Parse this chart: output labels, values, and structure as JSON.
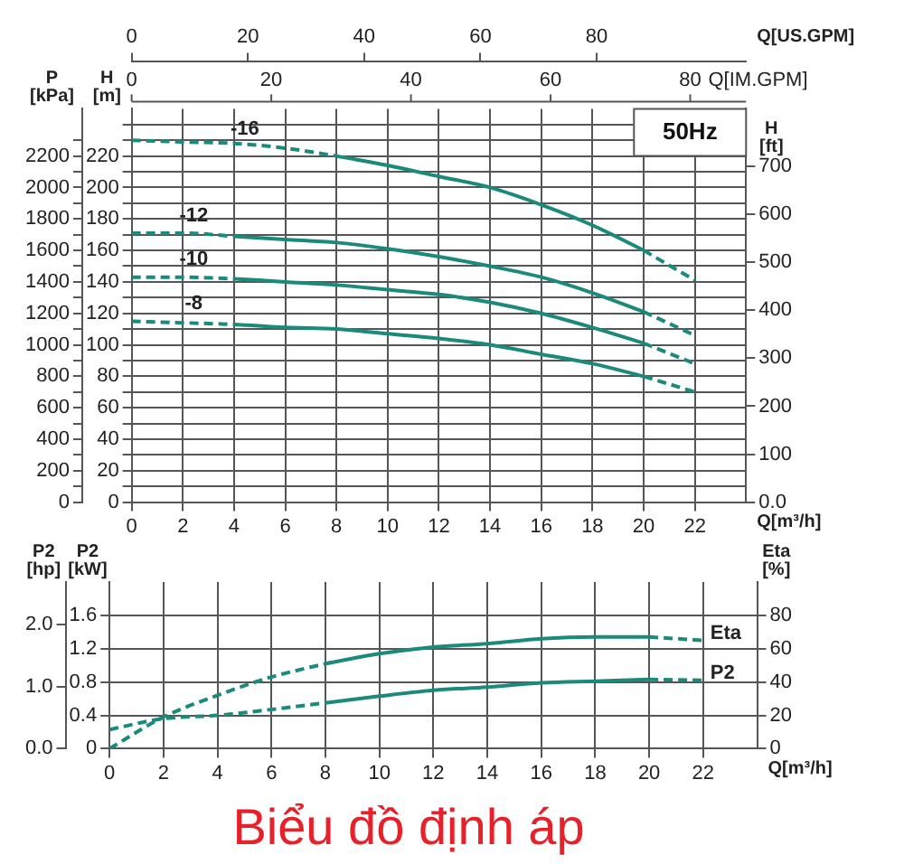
{
  "chart_data": [
    {
      "type": "line",
      "xlabel": "Q[m³/h]",
      "x2label": "Q[US.GPM]",
      "ylabel": "H [m]",
      "y2label": "P [kPa]",
      "y3label": "H [ft]",
      "annotations": [
        "50Hz",
        "0",
        "20",
        "40",
        "60",
        "80",
        "Q[IM.GPM]"
      ],
      "grid": true,
      "line_style": "solid",
      "xlim": [
        0,
        24
      ],
      "xticks": [
        0,
        2,
        4,
        6,
        8,
        10,
        12,
        14,
        16,
        18,
        20,
        22
      ],
      "x2lim": [
        0,
        105.7
      ],
      "x2ticks": [
        0,
        20,
        40,
        60,
        80
      ],
      "ylim": [
        0,
        250
      ],
      "yticks": [
        0,
        {
          "value": 10,
          "label": null
        },
        20,
        {
          "value": 30,
          "label": null
        },
        40,
        {
          "value": 50,
          "label": null
        },
        60,
        {
          "value": 70,
          "label": null
        },
        80,
        {
          "value": 90,
          "label": null
        },
        100,
        {
          "value": 110,
          "label": null
        },
        120,
        {
          "value": 130,
          "label": null
        },
        140,
        {
          "value": 150,
          "label": null
        },
        160,
        {
          "value": 170,
          "label": null
        },
        180,
        {
          "value": 190,
          "label": null
        },
        200,
        {
          "value": 210,
          "label": null
        },
        220,
        {
          "value": 230,
          "label": null
        },
        {
          "value": 240,
          "label": null
        }
      ],
      "y2lim": [
        0,
        2500
      ],
      "y2ticks": [
        0,
        {
          "value": 100,
          "label": null
        },
        200,
        {
          "value": 300,
          "label": null
        },
        400,
        {
          "value": 500,
          "label": null
        },
        600,
        {
          "value": 700,
          "label": null
        },
        800,
        {
          "value": 900,
          "label": null
        },
        1000,
        {
          "value": 1100,
          "label": null
        },
        1200,
        {
          "value": 1300,
          "label": null
        },
        1400,
        {
          "value": 1500,
          "label": null
        },
        1600,
        {
          "value": 1700,
          "label": null
        },
        1800,
        {
          "value": 1900,
          "label": null
        },
        2000,
        {
          "value": 2100,
          "label": null
        },
        2200,
        {
          "value": 2300,
          "label": null
        }
      ],
      "y3lim": [
        0,
        820
      ],
      "y3ticks": [
        {
          "value": 0,
          "label": "0.0"
        },
        100,
        200,
        300,
        400,
        500,
        600,
        700
      ],
      "series": [
        {
          "name": "-16",
          "color": "#1a8a7a",
          "line_style": "dashed",
          "x": [
            0,
            2,
            4,
            6,
            8
          ],
          "values": [
            230,
            229,
            228,
            225,
            220
          ]
        },
        {
          "color": "#1a8a7a",
          "x": [
            8,
            10,
            12,
            14,
            16,
            18,
            20
          ],
          "values": [
            220,
            214,
            207,
            200,
            189,
            176,
            160
          ]
        },
        {
          "color": "#1a8a7a",
          "line_style": "dashed",
          "x": [
            20,
            22
          ],
          "values": [
            160,
            141
          ]
        },
        {
          "name": "-12",
          "color": "#1a8a7a",
          "line_style": "dashed",
          "x": [
            0,
            2,
            4
          ],
          "values": [
            171,
            171,
            169
          ]
        },
        {
          "color": "#1a8a7a",
          "x": [
            4,
            6,
            8,
            10,
            12,
            14,
            16,
            18,
            20
          ],
          "values": [
            169,
            167,
            165,
            161,
            156,
            150,
            143,
            133,
            121
          ]
        },
        {
          "color": "#1a8a7a",
          "line_style": "dashed",
          "x": [
            20,
            22
          ],
          "values": [
            121,
            106
          ]
        },
        {
          "name": "-10",
          "color": "#1a8a7a",
          "line_style": "dashed",
          "x": [
            0,
            2,
            4
          ],
          "values": [
            143,
            143,
            142
          ]
        },
        {
          "color": "#1a8a7a",
          "x": [
            4,
            6,
            8,
            10,
            12,
            14,
            16,
            18,
            20
          ],
          "values": [
            142,
            140,
            138,
            135,
            132,
            127,
            120,
            111,
            101
          ]
        },
        {
          "color": "#1a8a7a",
          "line_style": "dashed",
          "x": [
            20,
            22
          ],
          "values": [
            101,
            88
          ]
        },
        {
          "name": "-8",
          "color": "#1a8a7a",
          "line_style": "dashed",
          "x": [
            0,
            2,
            4
          ],
          "values": [
            115,
            114,
            113
          ]
        },
        {
          "color": "#1a8a7a",
          "x": [
            4,
            6,
            8,
            10,
            12,
            14,
            16,
            18,
            20
          ],
          "values": [
            113,
            111,
            110,
            107,
            104,
            100,
            94,
            88,
            80
          ]
        },
        {
          "color": "#1a8a7a",
          "line_style": "dashed",
          "x": [
            20,
            22
          ],
          "values": [
            80,
            70
          ]
        }
      ]
    },
    {
      "type": "line",
      "title": "Biểu đồ định áp",
      "xlabel": "Q[m³/h]",
      "ylabel": "P2 [kW]",
      "y2label": "P2 [hp]",
      "y3label": "Eta [%]",
      "grid": true,
      "line_style": "solid",
      "xlim": [
        0,
        24
      ],
      "xticks": [
        0,
        2,
        4,
        6,
        8,
        10,
        12,
        14,
        16,
        18,
        20,
        22
      ],
      "ylim": [
        0,
        2.0
      ],
      "yticks": [
        0,
        0.4,
        0.8,
        1.2,
        1.6
      ],
      "y2lim": [
        0,
        2.68
      ],
      "y2ticks": [
        {
          "value": 0,
          "label": "0.0"
        },
        {
          "value": 1,
          "label": "1.0"
        },
        {
          "value": 2,
          "label": "2.0"
        }
      ],
      "y3lim": [
        0,
        100
      ],
      "y3ticks": [
        0,
        20,
        40,
        60,
        80
      ],
      "series": [
        {
          "color": "#1a8a7a",
          "line_style": "dashed",
          "axis": "y3",
          "x": [
            0,
            2,
            4,
            6,
            8
          ],
          "values": [
            0,
            19,
            32,
            43,
            51
          ]
        },
        {
          "color": "#1a8a7a",
          "axis": "y3",
          "x": [
            8,
            10,
            12,
            14,
            16,
            18,
            20
          ],
          "values": [
            51,
            57,
            61,
            63,
            66,
            67,
            67
          ]
        },
        {
          "name": "Eta",
          "color": "#1a8a7a",
          "line_style": "dashed",
          "axis": "y3",
          "x": [
            20,
            22
          ],
          "values": [
            67,
            65
          ]
        },
        {
          "color": "#1a8a7a",
          "line_style": "dashed",
          "x": [
            0,
            2,
            4,
            6,
            8
          ],
          "values": [
            0.23,
            0.36,
            0.4,
            0.47,
            0.55
          ]
        },
        {
          "color": "#1a8a7a",
          "x": [
            8,
            10,
            12,
            14,
            16,
            18,
            20
          ],
          "values": [
            0.55,
            0.63,
            0.7,
            0.74,
            0.79,
            0.81,
            0.83
          ]
        },
        {
          "name": "P2",
          "color": "#1a8a7a",
          "line_style": "dashed",
          "x": [
            20,
            22
          ],
          "values": [
            0.83,
            0.82
          ]
        }
      ]
    }
  ]
}
